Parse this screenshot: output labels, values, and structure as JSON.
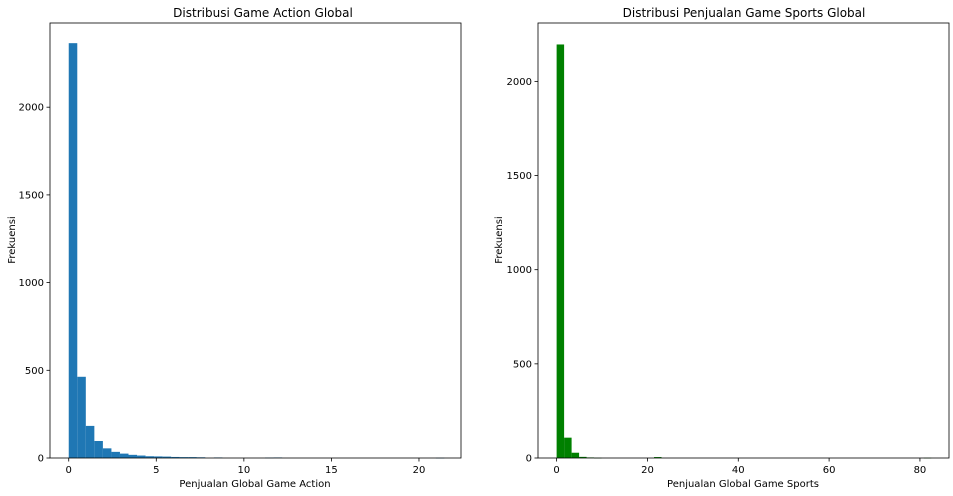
{
  "chart_data": [
    {
      "type": "bar",
      "title": "Distribusi Game Action Global",
      "xlabel": "Penjualan Global Game Action",
      "ylabel": "Frekuensi",
      "color": "#1f77b4",
      "xlim": [
        -1.07,
        22.4
      ],
      "ylim": [
        0,
        2480
      ],
      "xticks": [
        0,
        5,
        10,
        15,
        20
      ],
      "yticks": [
        0,
        500,
        1000,
        1500,
        2000
      ],
      "bin_width": 0.4875,
      "bin_start": 0.0,
      "values": [
        2365,
        463,
        183,
        97,
        55,
        35,
        25,
        18,
        14,
        10,
        9,
        8,
        6,
        5,
        5,
        4,
        0,
        3,
        0,
        0,
        0,
        0,
        0,
        2,
        3,
        0,
        0,
        0,
        0,
        0,
        0,
        0,
        0,
        0,
        0,
        0,
        0,
        0,
        0,
        0,
        0,
        0,
        0,
        1
      ],
      "grid": false,
      "legend": "none"
    },
    {
      "type": "bar",
      "title": "Distribusi Penjualan Game Sports Global",
      "xlabel": "Penjualan Global Game Sports",
      "ylabel": "Frekuensi",
      "color": "#008000",
      "xlim": [
        -4.1,
        86.4
      ],
      "ylim": [
        0,
        2310
      ],
      "xticks": [
        0,
        20,
        40,
        60,
        80
      ],
      "yticks": [
        0,
        500,
        1000,
        1500,
        2000
      ],
      "bin_width": 1.65,
      "bin_start": 0.0,
      "values": [
        2196,
        108,
        28,
        6,
        3,
        1,
        0,
        0,
        0,
        0,
        0,
        0,
        0,
        5,
        0,
        0,
        0,
        0,
        0,
        0,
        0,
        0,
        0,
        0,
        0,
        0,
        0,
        0,
        0,
        0,
        0,
        0,
        0,
        0,
        0,
        0,
        0,
        0,
        0,
        0,
        0,
        0,
        0,
        0,
        0,
        0,
        0,
        0,
        0,
        1
      ],
      "grid": false,
      "legend": "none"
    }
  ]
}
